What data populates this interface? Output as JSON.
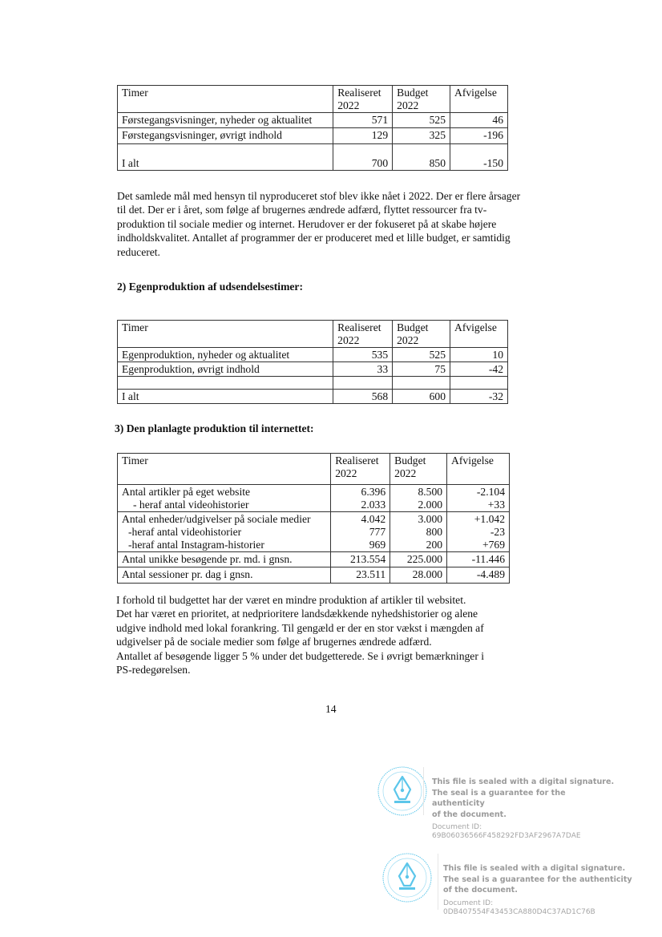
{
  "table1": {
    "headers": [
      "Timer",
      "Realiseret 2022",
      "Budget 2022",
      "Afvigelse"
    ],
    "rows": [
      [
        "Førstegangsvisninger, nyheder og aktualitet",
        "571",
        "525",
        "46"
      ],
      [
        "Førstegangsvisninger, øvrigt indhold",
        "129",
        "325",
        "-196"
      ],
      [
        "I alt",
        "700",
        "850",
        "-150"
      ]
    ]
  },
  "paragraph1": "Det samlede mål med hensyn til nyproduceret stof blev ikke nået i 2022. Der er flere årsager\ntil det. Der er i året, som følge af brugernes ændrede adfærd, flyttet ressourcer fra tv-\nproduktion til sociale medier og internet. Herudover er der fokuseret på at skabe højere\nindholdskvalitet. Antallet af programmer der er produceret med et lille budget, er samtidig\nreduceret.",
  "heading2": "2) Egenproduktion af udsendelsestimer:",
  "table2": {
    "headers": [
      "Timer",
      "Realiseret 2022",
      "Budget 2022",
      "Afvigelse"
    ],
    "rows": [
      [
        "Egenproduktion, nyheder og aktualitet",
        "535",
        "525",
        "10"
      ],
      [
        "Egenproduktion, øvrigt indhold",
        "33",
        "75",
        "-42"
      ],
      [
        "",
        "",
        "",
        ""
      ],
      [
        "I alt",
        "568",
        "600",
        "-32"
      ]
    ]
  },
  "heading3": "3) Den planlagte produktion til internettet:",
  "table3": {
    "headers": [
      "Timer",
      "Realiseret 2022",
      "Budget 2022",
      "Afvigelse"
    ],
    "groups": [
      {
        "rows": [
          [
            "Antal artikler på eget website",
            "6.396",
            "8.500",
            "-2.104"
          ],
          [
            "  - heraf antal videohistorier",
            "2.033",
            "2.000",
            "+33"
          ]
        ]
      },
      {
        "rows": [
          [
            "Antal enheder/udgivelser på sociale medier",
            "4.042",
            "3.000",
            "+1.042"
          ],
          [
            "  -heraf antal videohistorier",
            "777",
            "800",
            "-23"
          ],
          [
            "  -heraf antal Instagram-historier",
            "969",
            "200",
            "+769"
          ]
        ]
      },
      {
        "rows": [
          [
            "Antal unikke besøgende pr. md. i gnsn.",
            "213.554",
            "225.000",
            "-11.446"
          ]
        ]
      },
      {
        "rows": [
          [
            "Antal sessioner pr. dag i gnsn.",
            "23.511",
            "28.000",
            "-4.489"
          ]
        ]
      }
    ]
  },
  "paragraph2": "I forhold til budgettet har der været en mindre produktion af artikler til websitet.\nDet har været en prioritet, at nedprioritere landsdækkende nyhedshistorier og alene\nudgive indhold med lokal forankring. Til gengæld er der en stor vækst i mængden af\nudgivelser på de sociale medier som følge af brugernes ændrede adfærd.\nAntallet af besøgende ligger 5 % under det budgetterede. Se i øvrigt bemærkninger i\nPS-redegørelsen.",
  "page_number": "14",
  "seals": [
    {
      "message": "This file is sealed with a digital signature.\nThe seal is a guarantee for the authenticity\nof the document.",
      "id_label": "Document ID:",
      "id": "69B06036566F458292FD3AF2967A7DAE",
      "ring_text": "THIS FILE IS SEALED WITH ELECTRONIC SIGNATURE"
    },
    {
      "message": "This file is sealed with a digital signature.\nThe seal is a guarantee for the authenticity\nof the document.",
      "id_label": "Document ID:",
      "id": "0DB407554F43453CA880D4C37AD1C76B",
      "ring_text": "THIS FILE IS SEALED WITH ELECTRONIC SIGNATURE"
    }
  ],
  "colors": {
    "seal_blue": "#5cc6ea",
    "seal_text": "#9a9a9a"
  }
}
